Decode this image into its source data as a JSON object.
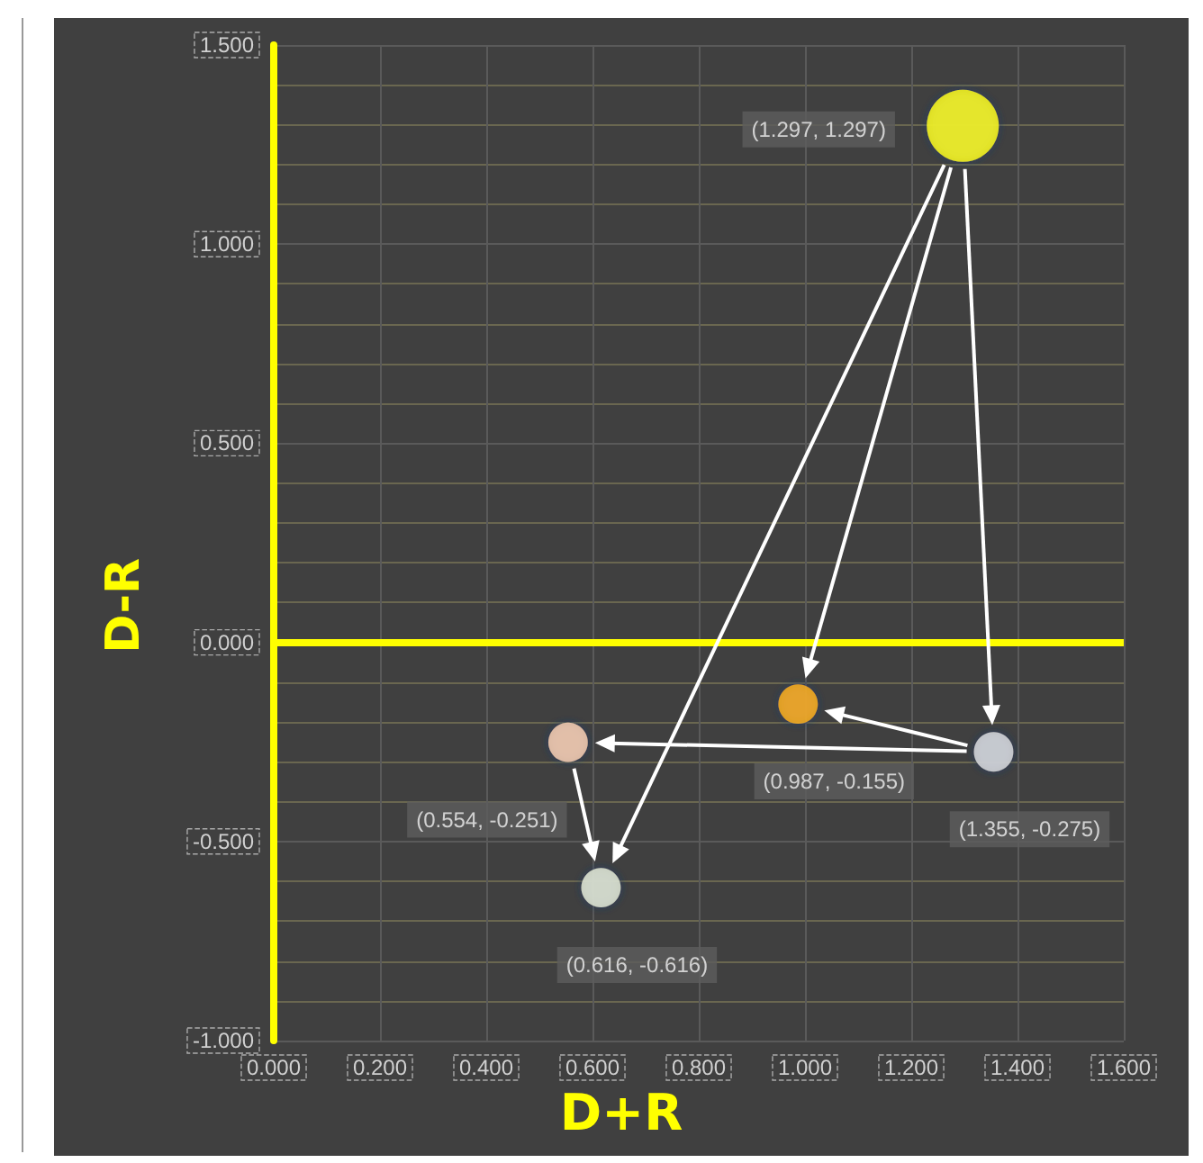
{
  "chart_data": {
    "type": "bubble",
    "xlabel": "D+R",
    "ylabel": "D-R",
    "x": [
      1.297,
      0.987,
      1.355,
      0.554,
      0.616
    ],
    "values": [
      1.297,
      -0.155,
      -0.275,
      -0.251,
      -0.616
    ],
    "sizes": [
      1,
      0.3,
      0.3,
      0.3,
      0.3
    ],
    "colors": [
      "#ffff00",
      "#ffb300",
      "#dcdfe4",
      "#fbd3b8",
      "#e6eedc"
    ],
    "xlim": [
      0,
      1.6
    ],
    "xticks": [
      {
        "value": 0,
        "label": "0.000"
      },
      {
        "value": 0.2,
        "label": "0.200"
      },
      {
        "value": 0.4,
        "label": "0.400"
      },
      {
        "value": 0.6,
        "label": "0.600"
      },
      {
        "value": 0.8,
        "label": "0.800"
      },
      {
        "value": 1,
        "label": "1.000"
      },
      {
        "value": 1.2,
        "label": "1.200"
      },
      {
        "value": 1.4,
        "label": "1.400"
      },
      {
        "value": 1.6,
        "label": "1.600"
      }
    ],
    "ylim": [
      -1,
      1.5
    ],
    "yticks": [
      {
        "value": -1,
        "label": "-1.000"
      },
      {
        "value": -0.5,
        "label": "-0.500"
      },
      {
        "value": 0,
        "label": "0.000"
      },
      {
        "value": 0.5,
        "label": "0.500"
      },
      {
        "value": 1,
        "label": "1.000"
      },
      {
        "value": 1.5,
        "label": "1.500"
      }
    ],
    "value_labels": [
      "(1.297, 1.297)",
      "(0.987, -0.155)",
      "(1.355, -0.275)",
      "(0.554, -0.251)",
      "(0.616, -0.616)"
    ],
    "ref_lines": [
      {
        "axis": "y",
        "value": 0,
        "color": "#ffff00"
      }
    ],
    "grid": true
  }
}
